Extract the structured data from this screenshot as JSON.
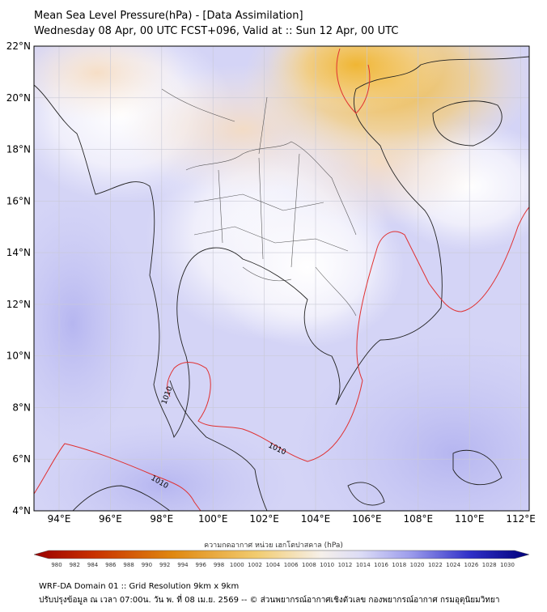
{
  "header": {
    "title": "Mean Sea Level Pressure(hPa) - [Data Assimilation]",
    "subtitle": "Wednesday 08 Apr, 00 UTC FCST+096, Valid at :: Sun 12 Apr, 00 UTC"
  },
  "map": {
    "lat_labels": [
      "22°N",
      "20°N",
      "18°N",
      "16°N",
      "14°N",
      "12°N",
      "10°N",
      "8°N",
      "6°N",
      "4°N"
    ],
    "lon_labels": [
      "94°E",
      "96°E",
      "98°E",
      "100°E",
      "102°E",
      "104°E",
      "106°E",
      "108°E",
      "110°E",
      "112°E"
    ],
    "isobar_labels": [
      "1010",
      "1010",
      "1010"
    ],
    "colors": {
      "low_pressure": "#b8b8f0",
      "high_pressure": "#f0b840",
      "isobar": "#e03030",
      "coastline": "#222222"
    }
  },
  "colorbar": {
    "label": "ความกดอากาศ หน่วย เฮกโตปาสคาล (hPa)",
    "ticks": [
      "980",
      "982",
      "984",
      "986",
      "988",
      "990",
      "992",
      "994",
      "996",
      "998",
      "1000",
      "1002",
      "1004",
      "1006",
      "1008",
      "1010",
      "1012",
      "1014",
      "1016",
      "1018",
      "1020",
      "1022",
      "1024",
      "1026",
      "1028",
      "1030"
    ],
    "colors": [
      "#9a0000",
      "#c03000",
      "#e08010",
      "#f0c060",
      "#f6f0e8",
      "#c8c8f4",
      "#3030c8",
      "#00007a"
    ]
  },
  "footer": {
    "line1": "WRF-DA Domain 01 :: Grid Resolution 9km x 9km",
    "line2": "ปรับปรุงข้อมูล ณ เวลา 07:00น. วัน พ. ที่ 08 เม.ย. 2569 -- © ส่วนพยากรณ์อากาศเชิงตัวเลข กองพยากรณ์อากาศ กรมอุตุนิยมวิทยา"
  }
}
